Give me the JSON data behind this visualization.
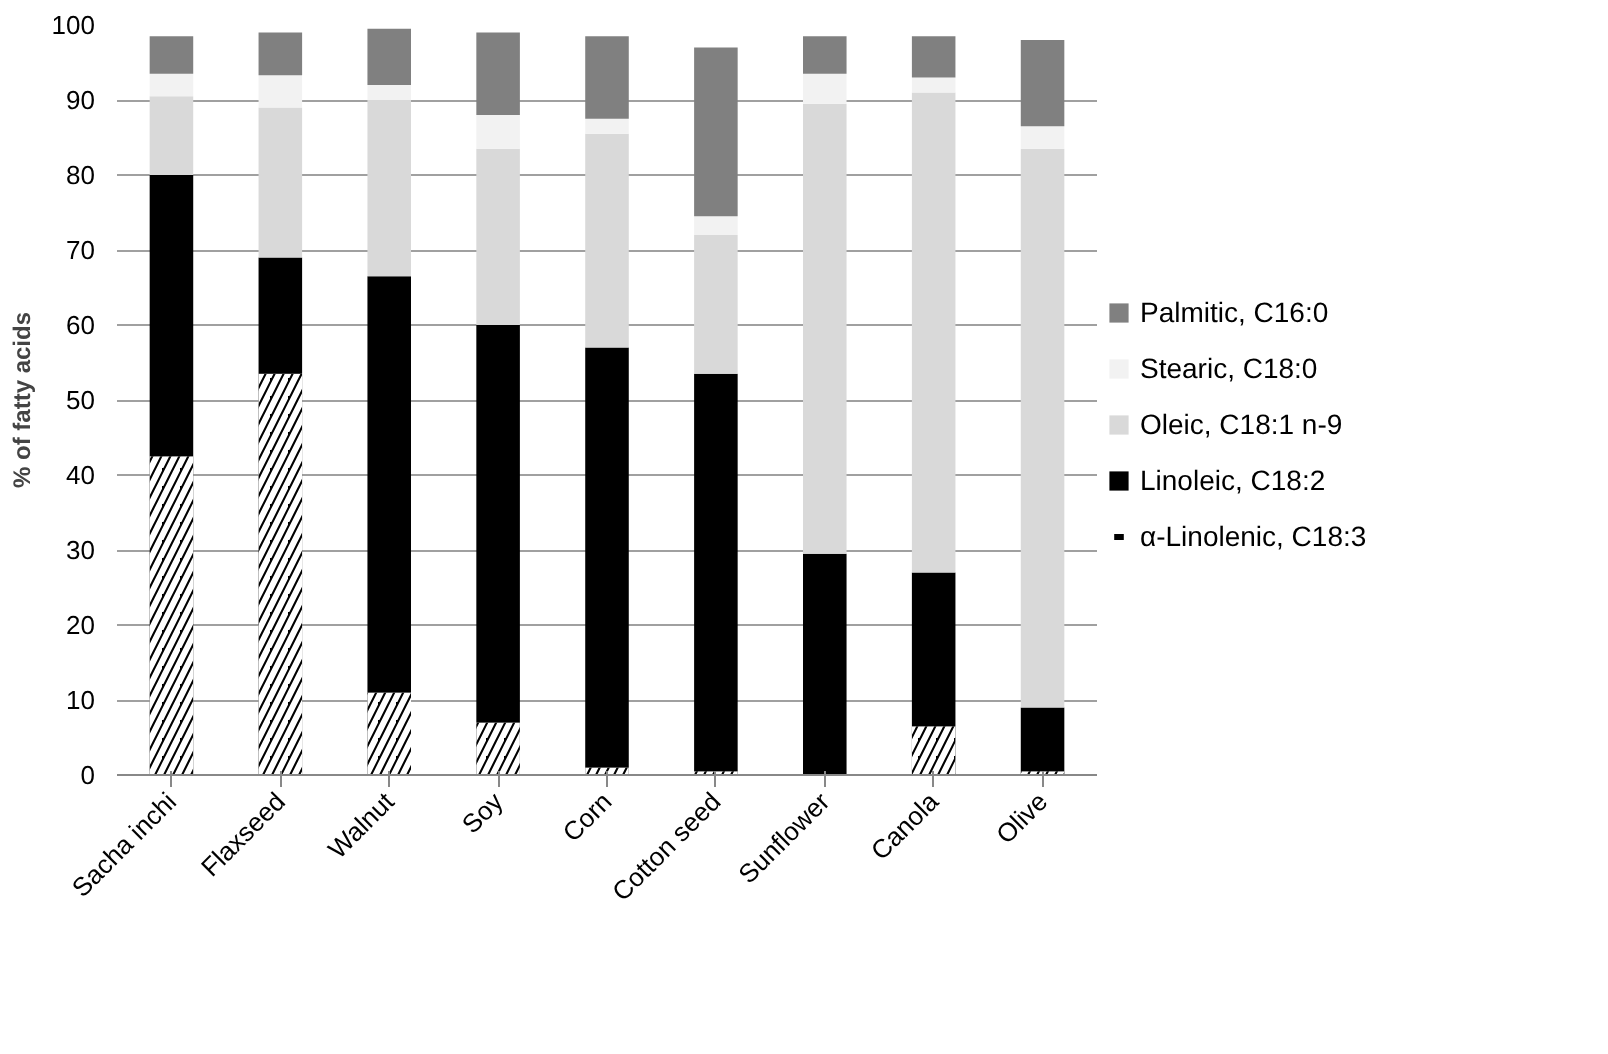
{
  "chart_data": {
    "type": "bar",
    "stacked": true,
    "ylabel": "% of fatty acids",
    "categories": [
      "Sacha inchi",
      "Flaxseed",
      "Walnut",
      "Soy",
      "Corn",
      "Cotton seed",
      "Sunflower",
      "Canola",
      "Olive"
    ],
    "series": [
      {
        "name": "α-Linolenic, C18:3",
        "color": "#000000",
        "values": [
          42.5,
          53.5,
          11,
          7,
          1,
          0.5,
          0,
          6.5,
          0.5
        ]
      },
      {
        "name": "Linoleic, C18:2",
        "color": "#000000",
        "values": [
          37.5,
          15.5,
          55.5,
          53,
          56,
          53,
          29.5,
          20.5,
          8.5
        ]
      },
      {
        "name": "Oleic, C18:1 n-9",
        "color": "#d9d9d9",
        "values": [
          10.5,
          20,
          23.5,
          23.5,
          28.5,
          18.5,
          60,
          64,
          74.5
        ]
      },
      {
        "name": "Stearic, C18:0",
        "color": "#f2f2f2",
        "values": [
          3,
          4.3,
          2,
          4.5,
          2,
          2.5,
          4,
          2,
          3
        ]
      },
      {
        "name": "Palmitic, C16:0",
        "color": "#808080",
        "values": [
          5,
          5.7,
          7.5,
          11,
          11,
          22.5,
          5,
          5.5,
          11.5
        ]
      }
    ],
    "ylim": [
      0,
      100
    ],
    "yticks": [
      0,
      10,
      20,
      30,
      40,
      50,
      60,
      70,
      80,
      90,
      100
    ],
    "grid": "y",
    "legend": "right"
  }
}
